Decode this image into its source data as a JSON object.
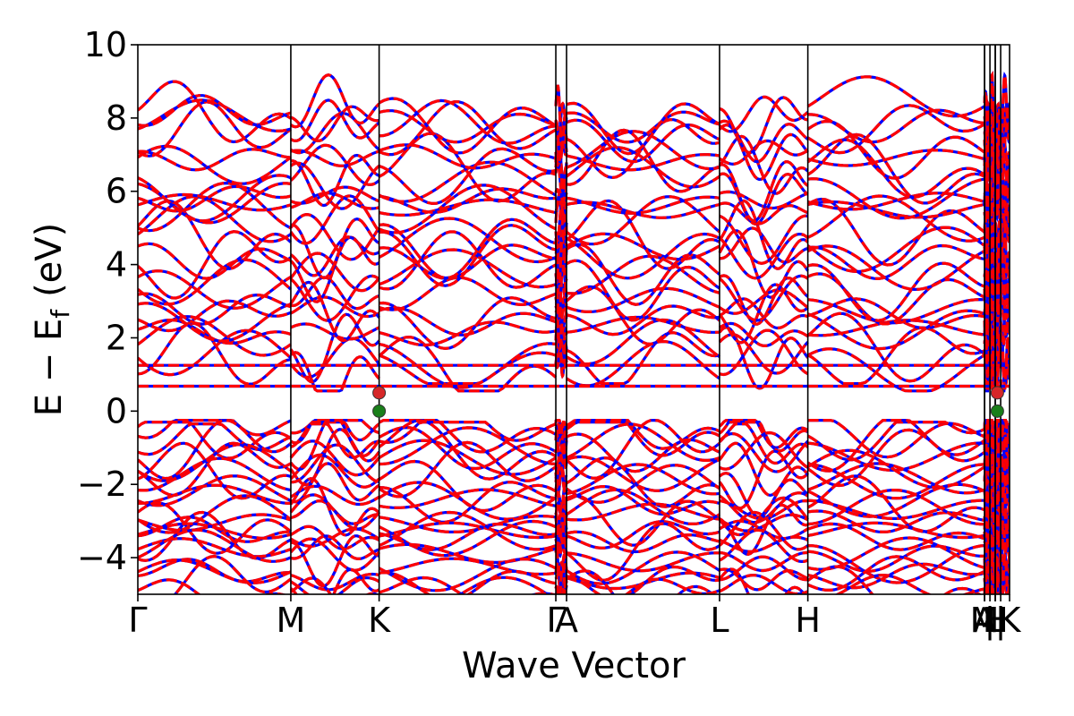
{
  "chart_data": {
    "type": "line",
    "xlabel": "Wave Vector",
    "ylabel": "E − E",
    "ylabel_sub": "f",
    "ylabel_unit": "(eV)",
    "ylim": [
      -5,
      10
    ],
    "yticks": [
      {
        "value": -4,
        "label": "−4"
      },
      {
        "value": -2,
        "label": "−2"
      },
      {
        "value": 0,
        "label": "0"
      },
      {
        "value": 2,
        "label": "2"
      },
      {
        "value": 4,
        "label": "4"
      },
      {
        "value": 6,
        "label": "6"
      },
      {
        "value": 8,
        "label": "8"
      },
      {
        "value": 10,
        "label": "10"
      }
    ],
    "kpath": [
      {
        "label": "Γ",
        "pos": 0.0
      },
      {
        "label": "M",
        "pos": 0.1755
      },
      {
        "label": "K",
        "pos": 0.2768
      },
      {
        "label": "Γ",
        "pos": 0.4795
      },
      {
        "label": "A",
        "pos": 0.4918
      },
      {
        "label": "L",
        "pos": 0.6673
      },
      {
        "label": "H",
        "pos": 0.7686
      },
      {
        "label": "A",
        "pos": 0.9713
      },
      {
        "label": "M",
        "pos": 0.9713
      },
      {
        "label": "|",
        "pos": 0.9775
      },
      {
        "label": "L",
        "pos": 0.9836
      },
      {
        "label": "H",
        "pos": 0.9836
      },
      {
        "label": "|",
        "pos": 0.9898
      },
      {
        "label": "K",
        "pos": 1.0
      }
    ],
    "xlim": [
      0,
      1
    ],
    "flat_bands": [
      0.68,
      1.25
    ],
    "markers": [
      {
        "name": "cbm",
        "x": 0.2768,
        "y": 0.5,
        "color": "#d62728"
      },
      {
        "name": "vbm",
        "x": 0.2768,
        "y": 0.0,
        "color": "#1a7f1a"
      },
      {
        "name": "cbm",
        "x": 0.986,
        "y": 0.5,
        "color": "#d62728"
      },
      {
        "name": "vbm",
        "x": 0.986,
        "y": 0.0,
        "color": "#1a7f1a"
      }
    ],
    "series": [
      {
        "style": "solid",
        "color": "#0000ff"
      },
      {
        "style": "dashed",
        "color": "#ff0000"
      }
    ]
  }
}
